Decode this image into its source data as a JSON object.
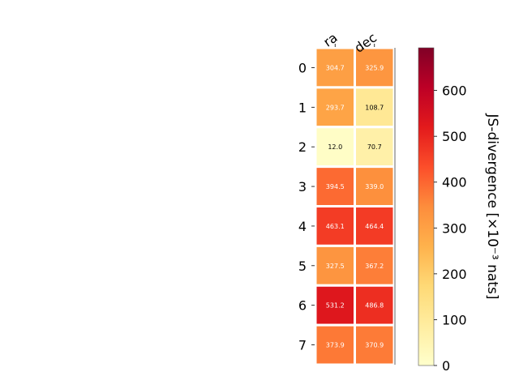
{
  "chart_data": {
    "type": "heatmap",
    "columns": [
      "ra",
      "dec"
    ],
    "rows": [
      "0",
      "1",
      "2",
      "3",
      "4",
      "5",
      "6",
      "7"
    ],
    "values": [
      [
        304.7,
        325.9
      ],
      [
        293.7,
        108.7
      ],
      [
        12.0,
        70.7
      ],
      [
        394.5,
        339.0
      ],
      [
        463.1,
        464.4
      ],
      [
        327.5,
        367.2
      ],
      [
        531.2,
        486.8
      ],
      [
        373.9,
        370.9
      ]
    ],
    "value_labels": [
      [
        "304.7",
        "325.9"
      ],
      [
        "293.7",
        "108.7"
      ],
      [
        "12.0",
        "70.7"
      ],
      [
        "394.5",
        "339.0"
      ],
      [
        "463.1",
        "464.4"
      ],
      [
        "327.5",
        "367.2"
      ],
      [
        "531.2",
        "486.8"
      ],
      [
        "373.9",
        "370.9"
      ]
    ],
    "colorbar": {
      "label": "JS-divergence [×10⁻³ nats]",
      "range": [
        0,
        693
      ],
      "ticks": [
        0,
        100,
        200,
        300,
        400,
        500,
        600
      ],
      "tick_labels": [
        "0",
        "100",
        "200",
        "300",
        "400",
        "500",
        "600"
      ],
      "colormap": "YlOrRd",
      "colormap_stops": [
        "#ffffcc",
        "#ffeda0",
        "#fed976",
        "#feb24c",
        "#fd8d3c",
        "#fc4e2a",
        "#e31a1c",
        "#bd0026",
        "#800026"
      ]
    },
    "cell_text_colors": {
      "light": "#ffffff",
      "dark": "#000000"
    },
    "grid_color": "#ffffff"
  }
}
